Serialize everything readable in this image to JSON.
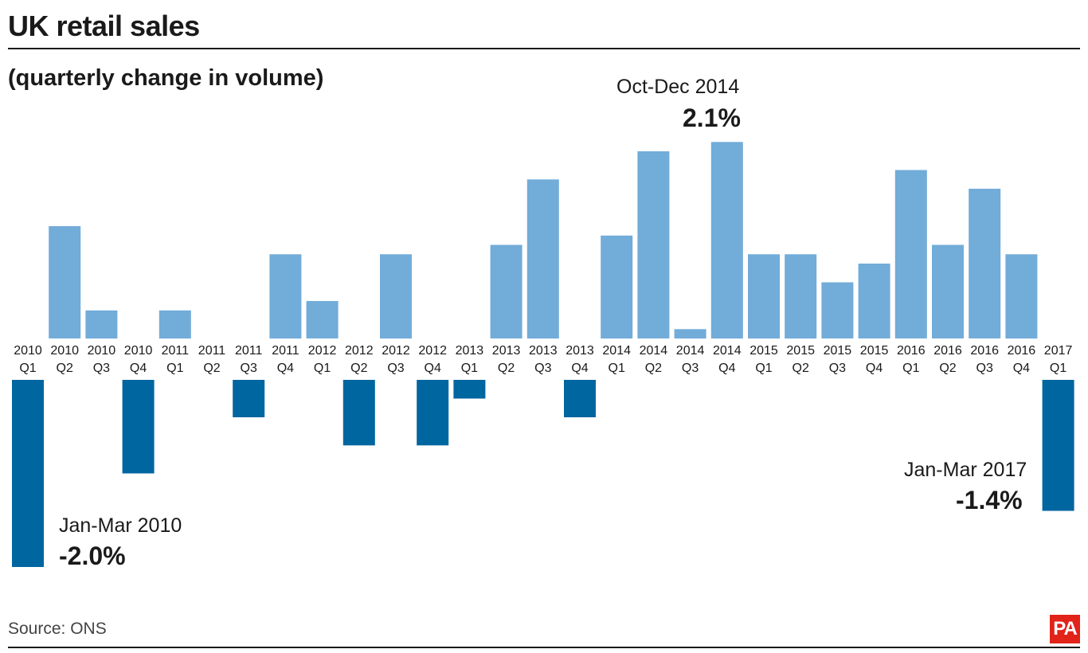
{
  "title": "UK retail sales",
  "subtitle": "(quarterly change in volume)",
  "source": "Source: ONS",
  "logo": "PA",
  "colors": {
    "positive": "#72acd9",
    "negative": "#0066a0",
    "text": "#1a1a1a",
    "logo": "#e2231a"
  },
  "annotations": {
    "max": {
      "label": "Oct-Dec 2014",
      "value": "2.1%"
    },
    "min": {
      "label": "Jan-Mar 2010",
      "value": "-2.0%"
    },
    "last": {
      "label": "Jan-Mar 2017",
      "value": "-1.4%"
    }
  },
  "chart_data": {
    "type": "bar",
    "title": "UK retail sales",
    "subtitle": "(quarterly change in volume)",
    "xlabel": "",
    "ylabel": "",
    "grid": false,
    "unit": "%",
    "categories": [
      "2010 Q1",
      "2010 Q2",
      "2010 Q3",
      "2010 Q4",
      "2011 Q1",
      "2011 Q2",
      "2011 Q3",
      "2011 Q4",
      "2012 Q1",
      "2012 Q2",
      "2012 Q3",
      "2012 Q4",
      "2013 Q1",
      "2013 Q2",
      "2013 Q3",
      "2013 Q4",
      "2014 Q1",
      "2014 Q2",
      "2014 Q3",
      "2014 Q4",
      "2015 Q1",
      "2015 Q2",
      "2015 Q3",
      "2015 Q4",
      "2016 Q1",
      "2016 Q2",
      "2016 Q3",
      "2016 Q4",
      "2017 Q1"
    ],
    "values": [
      -2.0,
      1.2,
      0.3,
      -1.0,
      0.3,
      0.0,
      -0.4,
      0.9,
      0.4,
      -0.7,
      0.9,
      -0.7,
      -0.2,
      1.0,
      1.7,
      -0.4,
      1.1,
      2.0,
      0.1,
      2.1,
      0.9,
      0.9,
      0.6,
      0.8,
      1.8,
      1.0,
      1.6,
      0.9,
      -1.4
    ]
  }
}
